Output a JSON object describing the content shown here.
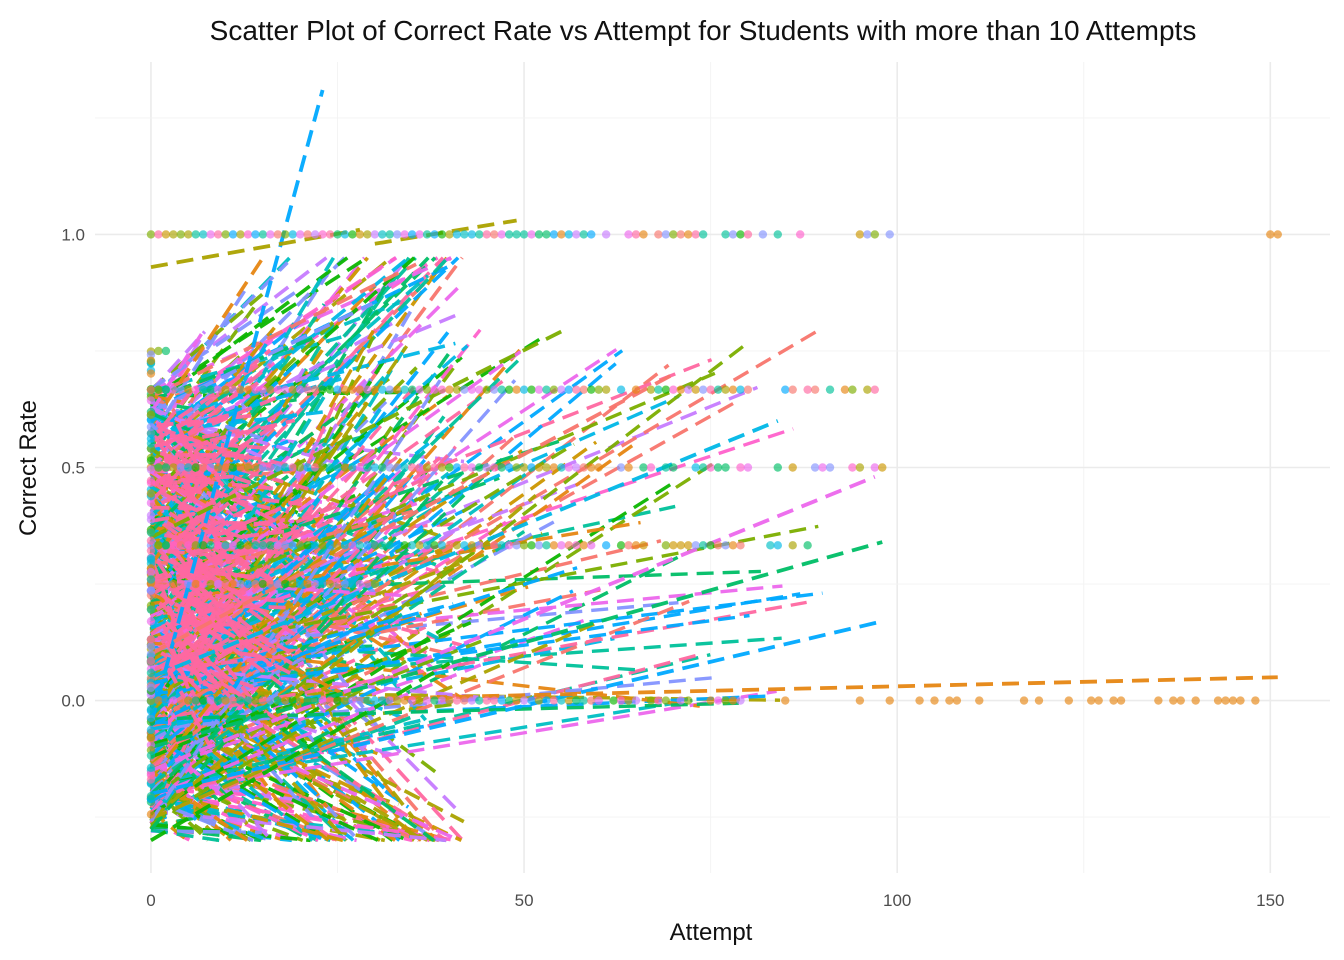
{
  "chart_data": {
    "type": "scatter",
    "title": "Scatter Plot of Correct Rate vs Attempt for Students with more than 10 Attempts",
    "xlabel": "Attempt",
    "ylabel": "Correct Rate",
    "xlim": [
      -7.5,
      158
    ],
    "ylim": [
      -0.37,
      1.37
    ],
    "x_ticks": [
      0,
      50,
      100,
      150
    ],
    "x_tick_labels": [
      "0",
      "50",
      "100",
      "150"
    ],
    "y_ticks": [
      0,
      0.5,
      1
    ],
    "y_tick_labels": [
      "0.0",
      "0.5",
      "1.0"
    ],
    "grid": true,
    "legend": "none",
    "palette": [
      "#F8766D",
      "#E68613",
      "#CD9600",
      "#ABA300",
      "#7CAE00",
      "#0CB702",
      "#00BE67",
      "#00C19A",
      "#00BFC4",
      "#00B8E7",
      "#00A9FF",
      "#8494FF",
      "#C77CFF",
      "#ED68ED",
      "#FF61CC",
      "#FF68A1"
    ],
    "point_bands": [
      {
        "y": 1.0,
        "x_from": 0,
        "x_to": 99
      },
      {
        "y": 1.0,
        "x_from": 150,
        "x_to": 151
      },
      {
        "y": 0.667,
        "x_from": 0,
        "x_to": 97
      },
      {
        "y": 0.5,
        "x_from": 0,
        "x_to": 98
      },
      {
        "y": 0.333,
        "x_from": 0,
        "x_to": 89
      },
      {
        "y": 0.25,
        "x_from": 0,
        "x_to": 30
      },
      {
        "y": 0.0,
        "x_from": 0,
        "x_to": 149
      }
    ],
    "trend_lines_sample": [
      {
        "x0": 0,
        "y0": -0.05,
        "x1": 23,
        "y1": 1.31
      },
      {
        "x0": 0,
        "y0": 0.93,
        "x1": 28,
        "y1": 1.01
      },
      {
        "x0": 30,
        "y0": 0.98,
        "x1": 49,
        "y1": 1.03
      },
      {
        "x0": 0,
        "y0": 0.35,
        "x1": 56,
        "y1": 0.8
      },
      {
        "x0": 0,
        "y0": 0.1,
        "x1": 70,
        "y1": 0.7
      },
      {
        "x0": 0,
        "y0": 0.05,
        "x1": 84,
        "y1": 0.6
      },
      {
        "x0": 0,
        "y0": -0.15,
        "x1": 97,
        "y1": 0.48
      },
      {
        "x0": 0,
        "y0": -0.1,
        "x1": 98,
        "y1": 0.34
      },
      {
        "x0": 0,
        "y0": -0.2,
        "x1": 98,
        "y1": 0.17
      },
      {
        "x0": 20,
        "y0": 0.0,
        "x1": 151,
        "y1": 0.05
      },
      {
        "x0": 0,
        "y0": -0.3,
        "x1": 40,
        "y1": 0.08
      }
    ]
  }
}
